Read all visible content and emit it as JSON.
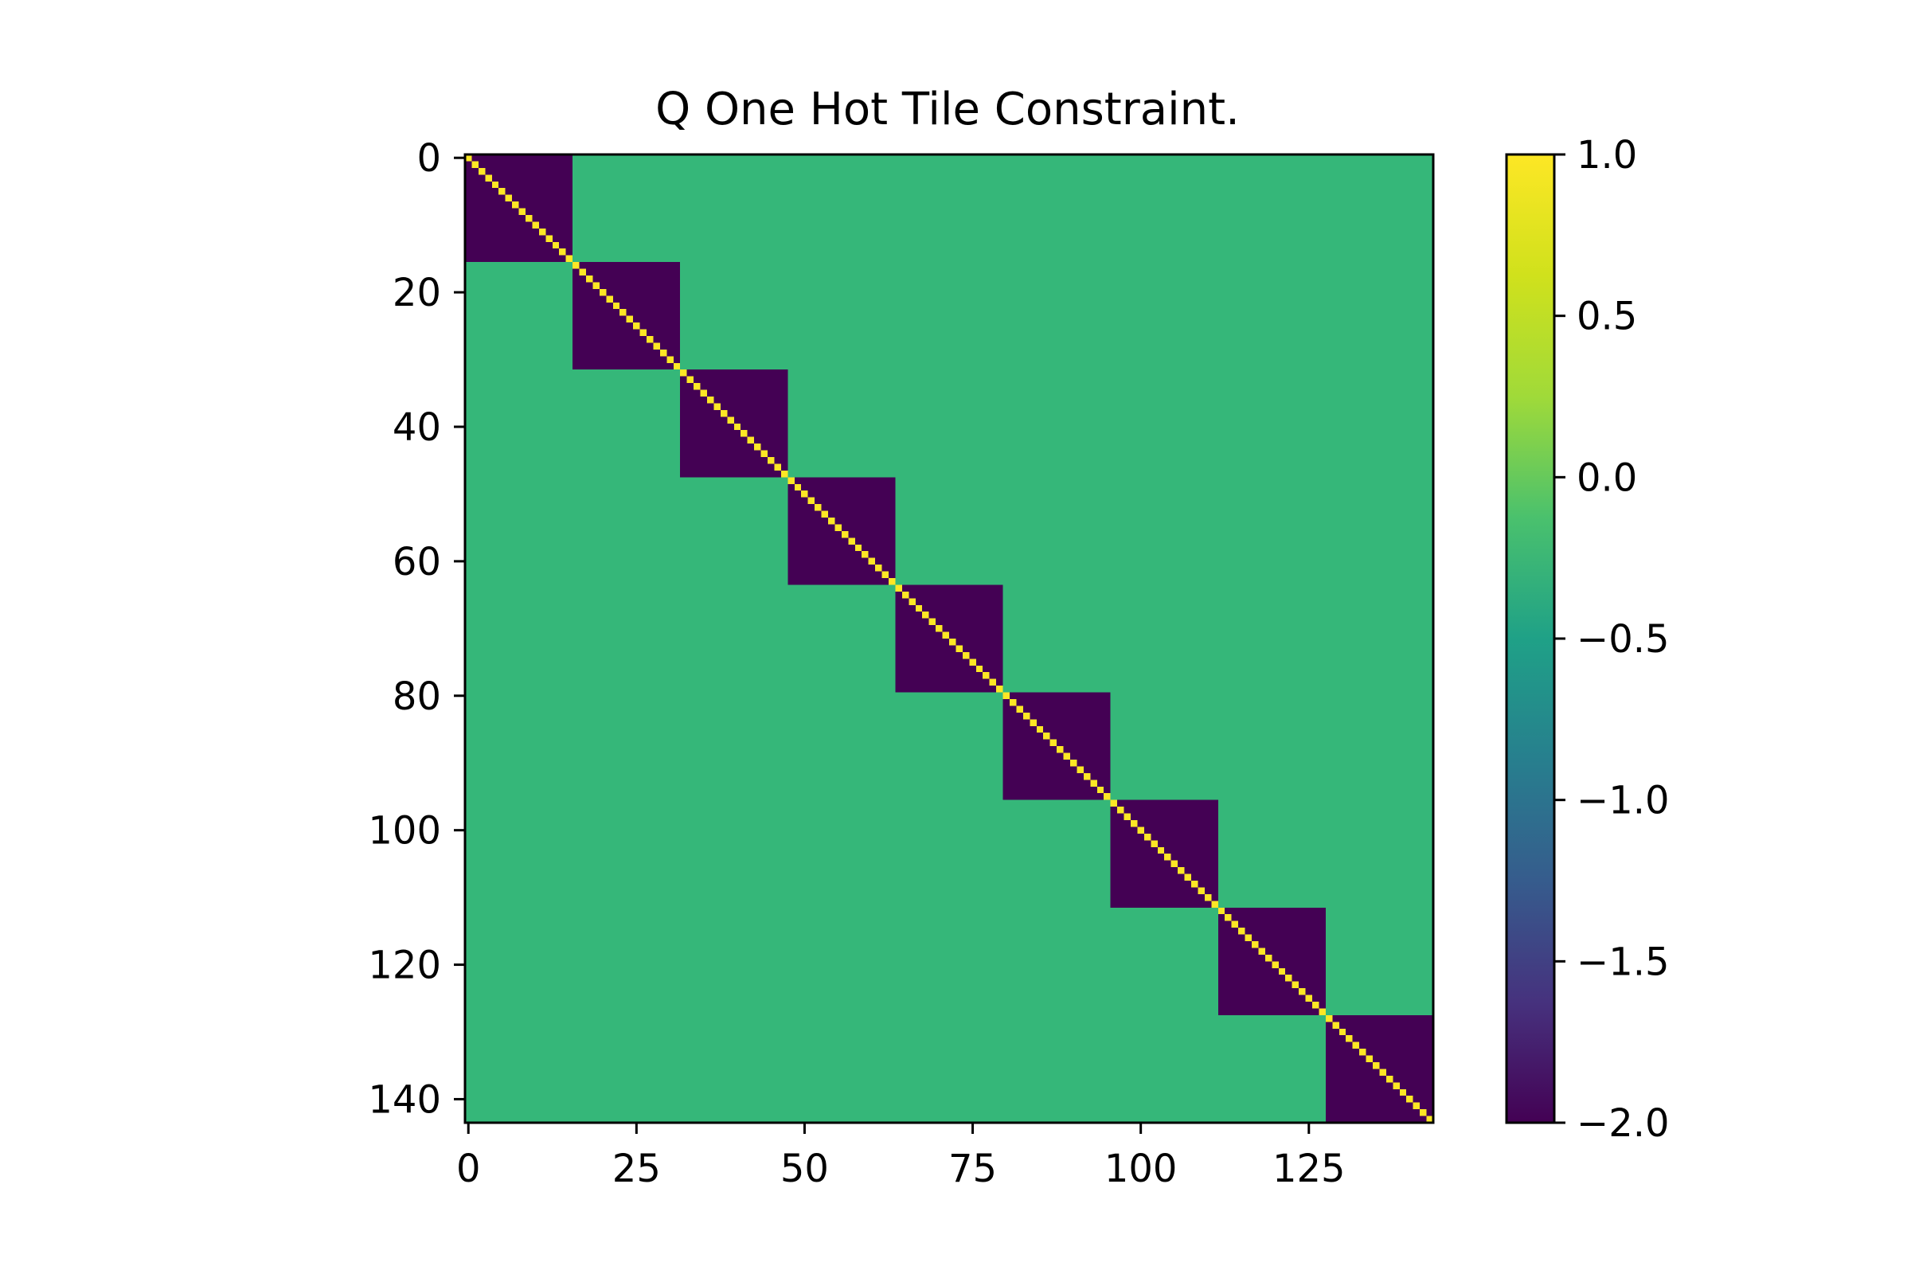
{
  "chart_data": {
    "type": "heatmap",
    "title": "Q One Hot Tile Constraint.",
    "xlabel": "",
    "ylabel": "",
    "matrix_size": 144,
    "block_size": 16,
    "num_blocks": 9,
    "values": {
      "diagonal": 1.0,
      "within_block_off_diagonal": -2.0,
      "outside_blocks": 0.0
    },
    "x_ticks": [
      0,
      25,
      50,
      75,
      100,
      125
    ],
    "x_tick_labels": [
      "0",
      "25",
      "50",
      "75",
      "100",
      "125"
    ],
    "y_ticks": [
      0,
      20,
      40,
      60,
      80,
      100,
      120,
      140
    ],
    "y_tick_labels": [
      "0",
      "20",
      "40",
      "60",
      "80",
      "100",
      "120",
      "140"
    ],
    "colorbar": {
      "min": -2.0,
      "max": 1.0,
      "colormap": "viridis",
      "ticks": [
        1.0,
        0.5,
        0.0,
        -0.5,
        -1.0,
        -1.5,
        -2.0
      ],
      "tick_labels": [
        "1.0",
        "0.5",
        "0.0",
        "−0.5",
        "−1.0",
        "−1.5",
        "−2.0"
      ]
    },
    "colors": {
      "block": "#440154",
      "background": "#35b779",
      "diagonal": "#fde725"
    },
    "grid": false,
    "legend": "none"
  }
}
